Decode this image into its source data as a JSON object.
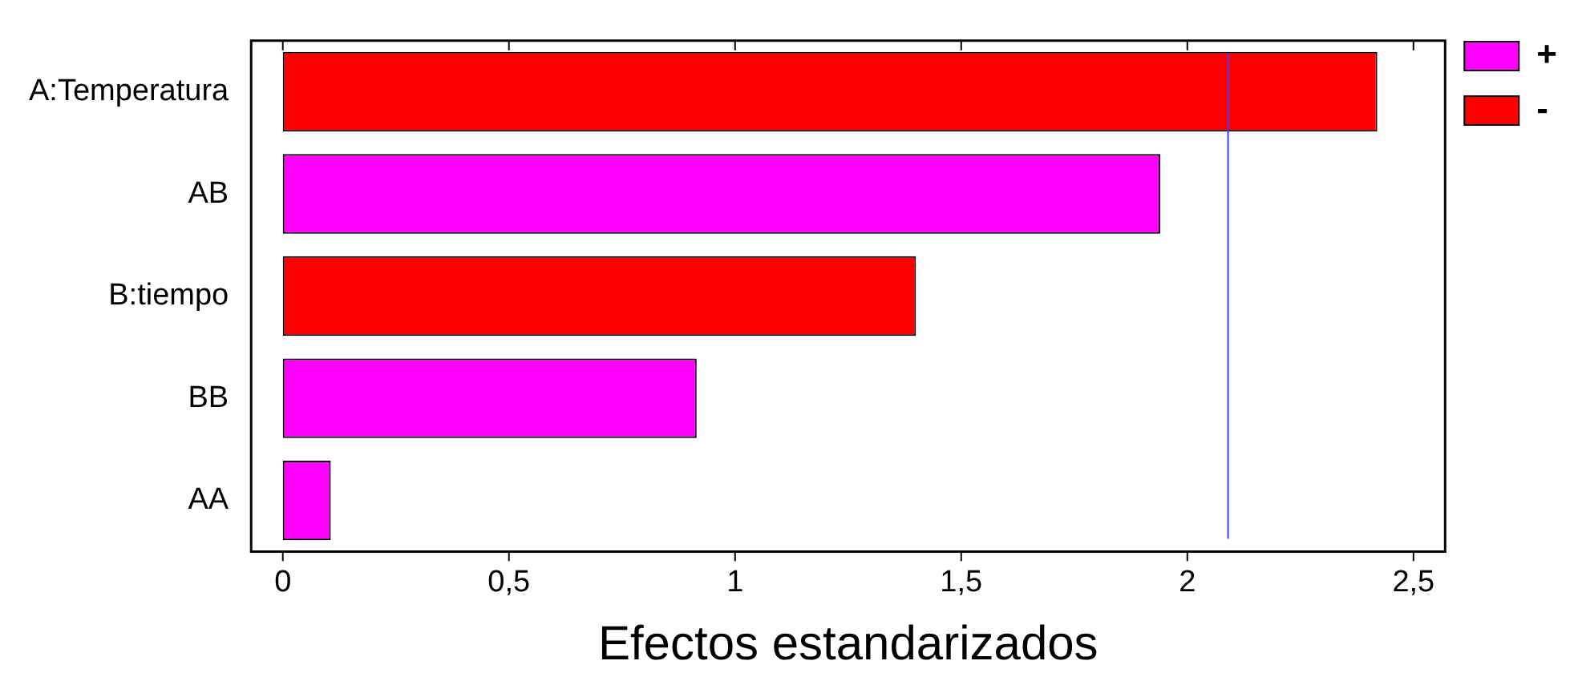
{
  "chart_data": {
    "type": "bar",
    "orientation": "horizontal",
    "xlabel": "Efectos estandarizados",
    "categories": [
      "A:Temperatura",
      "AB",
      "B:tiempo",
      "BB",
      "AA"
    ],
    "series": [
      {
        "name": "+",
        "color": "#ff00ff",
        "values": [
          null,
          1.94,
          null,
          0.915,
          0.106
        ]
      },
      {
        "name": "-",
        "color": "#ff0000",
        "values": [
          2.42,
          null,
          1.4,
          null,
          null
        ]
      }
    ],
    "xlim": [
      -0.07,
      2.57
    ],
    "xticks": [
      0,
      {
        "value": 0.5,
        "label": "0,5"
      },
      1,
      {
        "value": 1.5,
        "label": "1,5"
      },
      2,
      {
        "value": 2.5,
        "label": "2,5"
      }
    ],
    "ref_lines": [
      {
        "axis": "x",
        "value": 2.09,
        "color": "#4040ff"
      }
    ],
    "grid": false,
    "legend": "top right"
  }
}
